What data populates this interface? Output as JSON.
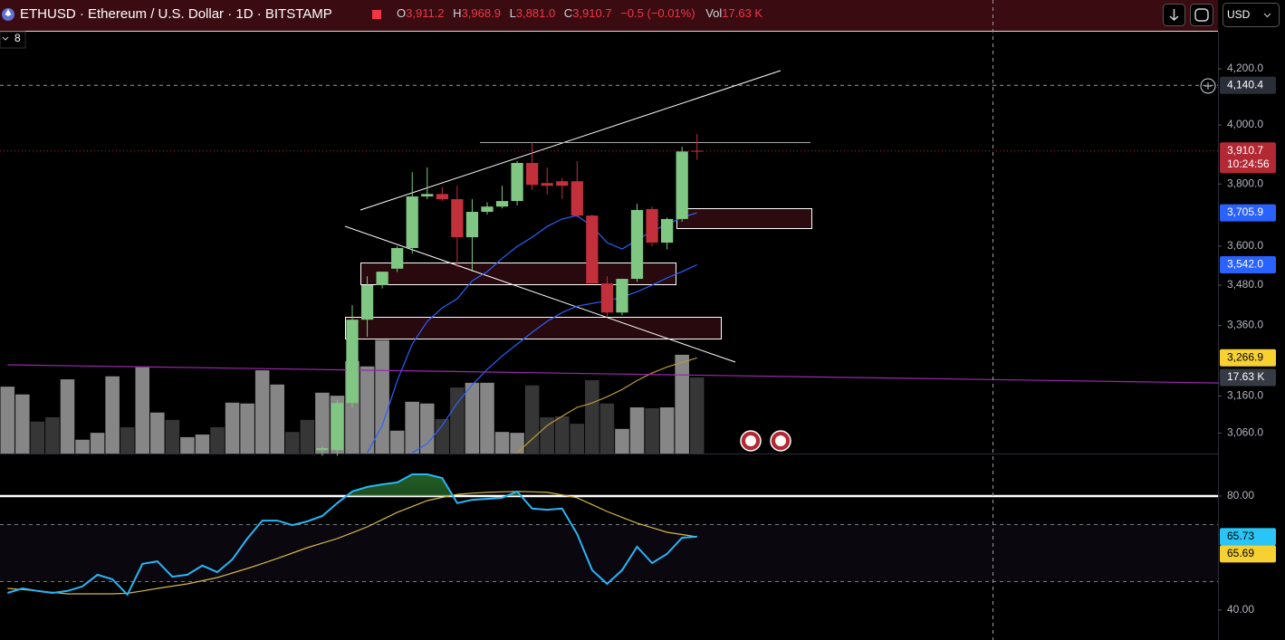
{
  "header": {
    "symbol": "ETHUSD · Ethereum / U.S. Dollar · 1D · BITSTAMP",
    "ohlc": [
      {
        "key": "O",
        "value": "3,911.2"
      },
      {
        "key": "H",
        "value": "3,968.9"
      },
      {
        "key": "L",
        "value": "3,881.0"
      },
      {
        "key": "C",
        "value": "3,910.7"
      }
    ],
    "change": "−0.5 (−0.01%)",
    "vol_key": "Vol",
    "vol_value": "17.63 K"
  },
  "currency": "USD",
  "indicator_count": "8",
  "chart_data": [
    {
      "type": "candlestick",
      "x": [
        null,
        null,
        null,
        null,
        null,
        null,
        null,
        null,
        null,
        null,
        null,
        null,
        null,
        null,
        null,
        null,
        null,
        null,
        null,
        null,
        null,
        null,
        null,
        null,
        null,
        null,
        null,
        null,
        null,
        null,
        null,
        null,
        null,
        null,
        null,
        null,
        null,
        null,
        null,
        null,
        null,
        null,
        null,
        null,
        null,
        null,
        null
      ],
      "open": [
        null,
        null,
        null,
        null,
        null,
        null,
        null,
        null,
        null,
        null,
        null,
        null,
        null,
        null,
        null,
        null,
        null,
        null,
        null,
        null,
        null,
        3015,
        3015,
        3141,
        3377,
        3480,
        3530,
        3594,
        3759,
        3767,
        3750,
        3628,
        3709,
        3726,
        3744,
        3870,
        3803,
        3809,
        3809,
        3697,
        3485,
        3398,
        3499,
        3718,
        3611,
        3686,
        3911.2
      ],
      "high": [
        null,
        null,
        null,
        null,
        null,
        null,
        null,
        null,
        null,
        null,
        null,
        null,
        null,
        null,
        null,
        null,
        null,
        null,
        null,
        null,
        null,
        3025,
        3150,
        3420,
        3507,
        3521,
        3600,
        3839,
        3855,
        3790,
        3794,
        3750,
        3740,
        3794,
        3876,
        3940,
        3855,
        3820,
        3876,
        3700,
        3507,
        3499,
        3735,
        3726,
        3691,
        3925,
        3968.9
      ],
      "low": [
        null,
        null,
        null,
        null,
        null,
        null,
        null,
        null,
        null,
        null,
        null,
        null,
        null,
        null,
        null,
        null,
        null,
        null,
        null,
        null,
        null,
        3000,
        3000,
        3129,
        3327,
        3470,
        3520,
        3577,
        3750,
        3744,
        3535,
        3521,
        3700,
        3720,
        3730,
        3780,
        3765,
        3750,
        3691,
        3485,
        3385,
        3390,
        3490,
        3600,
        3590,
        3677,
        3881.0
      ],
      "close": [
        null,
        null,
        null,
        null,
        null,
        null,
        null,
        null,
        null,
        null,
        null,
        null,
        null,
        null,
        null,
        null,
        null,
        null,
        null,
        null,
        null,
        3020,
        3141,
        3377,
        3480,
        3521,
        3594,
        3759,
        3767,
        3750,
        3628,
        3709,
        3726,
        3744,
        3870,
        3797,
        3794,
        3794,
        3697,
        3485,
        3398,
        3499,
        3715,
        3611,
        3686,
        3909,
        3910.7
      ],
      "up_color": "#81c784",
      "down_color": "#c2303b",
      "ylim": [
        3006,
        4338
      ],
      "log_scale": true,
      "yticks": [
        {
          "value": 4200,
          "label": "4,200.0"
        },
        {
          "value": 4000,
          "label": "4,000.0"
        },
        {
          "value": 3800,
          "label": "3,800.0"
        },
        {
          "value": 3600,
          "label": "3,600.0"
        },
        {
          "value": 3480,
          "label": "3,480.0"
        },
        {
          "value": 3360,
          "label": "3,360.0"
        },
        {
          "value": 3160,
          "label": "3,160.0"
        },
        {
          "value": 3060,
          "label": "3,060.0"
        }
      ],
      "series": [
        {
          "color": "#2962ff",
          "values": [
            null,
            null,
            null,
            null,
            null,
            null,
            null,
            null,
            null,
            null,
            null,
            null,
            null,
            null,
            null,
            null,
            null,
            null,
            null,
            null,
            null,
            null,
            null,
            null,
            3008,
            3080,
            3203,
            3306,
            3372,
            3412,
            3439,
            3493,
            3521,
            3562,
            3599,
            3628,
            3662,
            3686,
            3697,
            3662,
            3611,
            3591,
            3619,
            3648,
            3668,
            3691,
            3705.9
          ]
        },
        {
          "color": "#2962ff",
          "values": [
            null,
            null,
            null,
            null,
            null,
            null,
            null,
            null,
            null,
            null,
            null,
            null,
            null,
            null,
            null,
            null,
            null,
            null,
            null,
            null,
            null,
            null,
            null,
            null,
            null,
            null,
            null,
            3008,
            3032,
            3080,
            3141,
            3191,
            3234,
            3272,
            3306,
            3340,
            3372,
            3398,
            3417,
            3425,
            3433,
            3444,
            3460,
            3480,
            3502,
            3521,
            3542.0
          ]
        },
        {
          "color": "#b89a34",
          "values": [
            null,
            null,
            null,
            null,
            null,
            null,
            null,
            null,
            null,
            null,
            null,
            null,
            null,
            null,
            null,
            null,
            null,
            null,
            null,
            null,
            null,
            null,
            null,
            null,
            null,
            null,
            null,
            null,
            null,
            null,
            null,
            null,
            null,
            null,
            3008,
            3044,
            3080,
            3105,
            3129,
            3141,
            3158,
            3178,
            3203,
            3224,
            3241,
            3254,
            3266.9
          ]
        },
        {
          "color": "#9c27b0",
          "x": [
            0,
            80.8
          ],
          "values": [
            3247,
            3196
          ]
        }
      ],
      "volume": {
        "values": [
          15.5,
          13.7,
          7.4,
          8.4,
          17.2,
          3.2,
          4.8,
          17.9,
          6.1,
          20.0,
          9.5,
          7.8,
          3.8,
          4.4,
          6.1,
          11.8,
          11.6,
          19.3,
          16.0,
          5.0,
          7.8,
          14.1,
          13.4,
          21.4,
          20.2,
          26.3,
          5.3,
          12.0,
          11.6,
          8.0,
          15.3,
          16.4,
          16.4,
          5.0,
          4.8,
          15.8,
          8.4,
          8.6,
          6.9,
          17.0,
          11.6,
          5.7,
          10.7,
          10.5,
          10.7,
          22.9,
          17.63
        ],
        "colors": [
          "#868686",
          "#868686",
          "#363636",
          "#363636",
          "#868686",
          "#868686",
          "#868686",
          "#868686",
          "#363636",
          "#868686",
          "#868686",
          "#363636",
          "#868686",
          "#868686",
          "#363636",
          "#868686",
          "#868686",
          "#868686",
          "#868686",
          "#363636",
          "#363636",
          "#868686",
          "#868686",
          "#868686",
          "#868686",
          "#868686",
          "#868686",
          "#868686",
          "#868686",
          "#363636",
          "#363636",
          "#868686",
          "#868686",
          "#868686",
          "#868686",
          "#363636",
          "#363636",
          "#363636",
          "#363636",
          "#363636",
          "#363636",
          "#868686",
          "#868686",
          "#363636",
          "#868686",
          "#868686",
          "#363636"
        ],
        "value_label": {
          "value": 17.63,
          "label": "17.63 K",
          "color": "#363a45",
          "text_color": "#ffffff"
        }
      },
      "price_labels": [
        {
          "value": 4140.4,
          "label": "4,140.4",
          "color": "#2a2e39",
          "text_color": "#ffffff",
          "line": "dashed"
        },
        {
          "value": 3910.7,
          "label": "3,910.7",
          "sublabel": "10:24:56",
          "color": "#b22833",
          "text_color": "#ffffff",
          "line": "dotted"
        },
        {
          "value": 3705.9,
          "label": "3,705.9",
          "color": "#2962ff",
          "text_color": "#ffffff"
        },
        {
          "value": 3542.0,
          "label": "3,542.0",
          "color": "#2962ff",
          "text_color": "#ffffff"
        },
        {
          "value": 3266.9,
          "label": "3,266.9",
          "color": "#f7d032",
          "text_color": "#000000"
        }
      ]
    },
    {
      "type": "line",
      "series": [
        {
          "color": "#29b6f6",
          "values": [
            46.0,
            47.6,
            46.7,
            46.0,
            46.7,
            48.3,
            52.4,
            50.8,
            45.4,
            56.2,
            57.1,
            51.7,
            52.4,
            55.6,
            53.3,
            57.8,
            65.1,
            71.4,
            71.4,
            69.8,
            71.1,
            73.0,
            77.5,
            81.6,
            83.2,
            84.1,
            84.8,
            87.6,
            87.6,
            86.3,
            77.5,
            78.7,
            79.0,
            79.4,
            81.6,
            75.6,
            75.2,
            75.6,
            66.7,
            54.0,
            49.2,
            54.0,
            62.2,
            56.5,
            59.7,
            65.4,
            65.73
          ]
        },
        {
          "color": "#d4b84a",
          "values": [
            47.6,
            47.2,
            46.7,
            46.2,
            45.7,
            45.7,
            45.7,
            45.7,
            45.9,
            46.7,
            47.6,
            48.4,
            49.2,
            50.3,
            51.4,
            53.0,
            54.6,
            56.3,
            58.1,
            60.0,
            61.9,
            63.5,
            65.1,
            67.1,
            69.2,
            71.7,
            74.3,
            76.3,
            78.4,
            79.5,
            80.6,
            81.0,
            81.3,
            81.5,
            81.6,
            81.5,
            81.3,
            80.4,
            79.4,
            77.0,
            74.6,
            72.5,
            70.5,
            68.9,
            67.3,
            66.5,
            65.69
          ]
        }
      ],
      "ylim": [
        29.5,
        94.6
      ],
      "yticks": [
        {
          "value": 80,
          "label": "80.00"
        },
        {
          "value": 40,
          "label": "40.00"
        }
      ],
      "levels": [
        70,
        50
      ],
      "fill_above": 80,
      "fill_color": "#2e7d32",
      "price_labels": [
        {
          "value": 65.73,
          "label": "65.73",
          "color": "#29c5f6",
          "text_color": "#000000"
        },
        {
          "value": 65.69,
          "label": "65.69",
          "color": "#f7d032",
          "text_color": "#000000"
        }
      ]
    }
  ]
}
